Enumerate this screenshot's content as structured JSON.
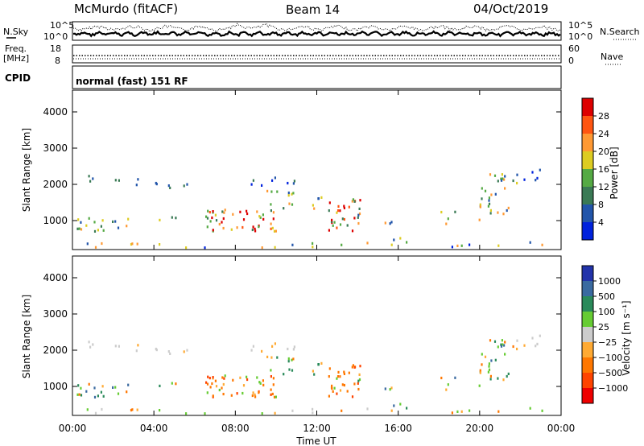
{
  "header": {
    "station": "McMurdo (fitACF)",
    "beam": "Beam 14",
    "date": "04/Oct/2019"
  },
  "top_panels": {
    "nsky_label": "N.Sky",
    "nsearch_label": "N.Search",
    "sky_ticks": [
      "10^5",
      "10^0"
    ],
    "search_ticks": [
      "10^5",
      "10^0"
    ],
    "freq_label": "Freq.",
    "freq_unit": "[MHz]",
    "freq_ticks": [
      "18",
      "8"
    ],
    "nave_label": "Nave",
    "nave_ticks": [
      "60",
      "0"
    ],
    "cpid_label": "CPID",
    "cpid_value": "normal (fast) 151 RF"
  },
  "chart_data": [
    {
      "type": "heatmap",
      "name": "power-panel",
      "ylabel": "Slant Range [km]",
      "xlabel": "",
      "ylim": [
        200,
        4600
      ],
      "xlim_hours": [
        0,
        24
      ],
      "y_ticks": [
        "1000",
        "2000",
        "3000",
        "4000"
      ],
      "y_tick_values": [
        1000,
        2000,
        3000,
        4000
      ],
      "colorbar": {
        "label": "Power [dB]",
        "ticks": [
          "4",
          "8",
          "12",
          "16",
          "20",
          "24",
          "28"
        ],
        "tick_values": [
          4,
          8,
          12,
          16,
          20,
          24,
          28
        ],
        "colors": [
          "#0022dd",
          "#2255aa",
          "#3a7a55",
          "#55aa44",
          "#ddcc22",
          "#ff9933",
          "#ff5511",
          "#dd0000"
        ]
      }
    },
    {
      "type": "heatmap",
      "name": "velocity-panel",
      "ylabel": "Slant Range [km]",
      "xlabel": "Time UT",
      "ylim": [
        200,
        4600
      ],
      "xlim_hours": [
        0,
        24
      ],
      "y_ticks": [
        "1000",
        "2000",
        "3000",
        "4000"
      ],
      "y_tick_values": [
        1000,
        2000,
        3000,
        4000
      ],
      "x_ticks": [
        "00:00",
        "04:00",
        "08:00",
        "12:00",
        "16:00",
        "20:00",
        "00:00"
      ],
      "x_tick_hours": [
        0,
        4,
        8,
        12,
        16,
        20,
        24
      ],
      "colorbar": {
        "label": "Velocity [m s⁻¹]",
        "ticks": [
          "1000",
          "500",
          "100",
          "25",
          "−25",
          "−100",
          "−500",
          "−1000"
        ],
        "tick_values": [
          1000,
          500,
          100,
          25,
          -25,
          -100,
          -500,
          -1000
        ],
        "colors": [
          "#2233aa",
          "#3a6aa0",
          "#2a8a5a",
          "#66cc33",
          "#cccccc",
          "#ffaa33",
          "#ff7700",
          "#ff4400",
          "#ee0000"
        ]
      }
    }
  ]
}
